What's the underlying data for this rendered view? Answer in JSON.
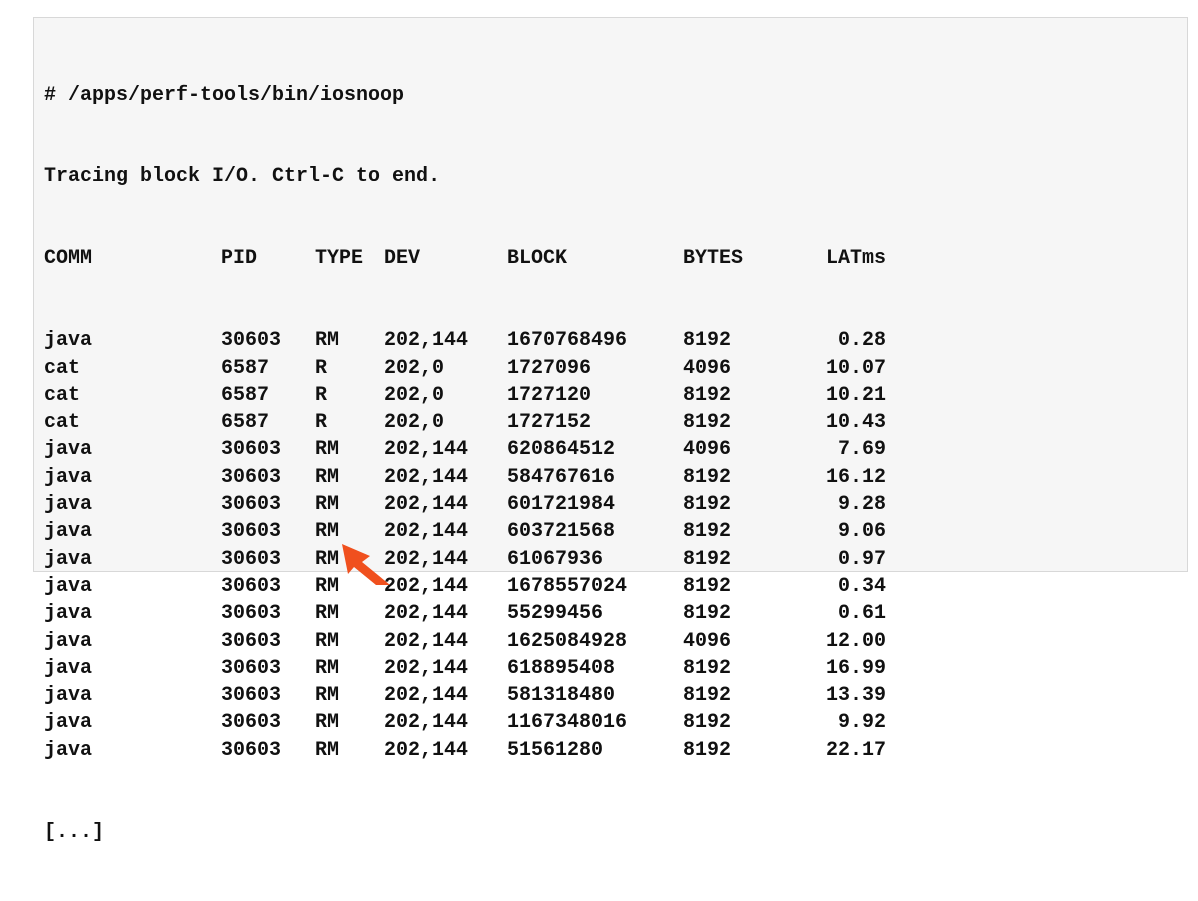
{
  "terminal": {
    "command": "# /apps/perf-tools/bin/iosnoop",
    "status_line": "Tracing block I/O. Ctrl-C to end.",
    "headers": {
      "comm": "COMM",
      "pid": "PID",
      "type": "TYPE",
      "dev": "DEV",
      "block": "BLOCK",
      "bytes": "BYTES",
      "latms": "LATms"
    },
    "rows": [
      {
        "comm": "java",
        "pid": "30603",
        "type": "RM",
        "dev": "202,144",
        "block": "1670768496",
        "bytes": "8192",
        "latms": "0.28"
      },
      {
        "comm": "cat",
        "pid": "6587",
        "type": "R",
        "dev": "202,0",
        "block": "1727096",
        "bytes": "4096",
        "latms": "10.07"
      },
      {
        "comm": "cat",
        "pid": "6587",
        "type": "R",
        "dev": "202,0",
        "block": "1727120",
        "bytes": "8192",
        "latms": "10.21"
      },
      {
        "comm": "cat",
        "pid": "6587",
        "type": "R",
        "dev": "202,0",
        "block": "1727152",
        "bytes": "8192",
        "latms": "10.43"
      },
      {
        "comm": "java",
        "pid": "30603",
        "type": "RM",
        "dev": "202,144",
        "block": "620864512",
        "bytes": "4096",
        "latms": "7.69"
      },
      {
        "comm": "java",
        "pid": "30603",
        "type": "RM",
        "dev": "202,144",
        "block": "584767616",
        "bytes": "8192",
        "latms": "16.12"
      },
      {
        "comm": "java",
        "pid": "30603",
        "type": "RM",
        "dev": "202,144",
        "block": "601721984",
        "bytes": "8192",
        "latms": "9.28"
      },
      {
        "comm": "java",
        "pid": "30603",
        "type": "RM",
        "dev": "202,144",
        "block": "603721568",
        "bytes": "8192",
        "latms": "9.06"
      },
      {
        "comm": "java",
        "pid": "30603",
        "type": "RM",
        "dev": "202,144",
        "block": "61067936",
        "bytes": "8192",
        "latms": "0.97"
      },
      {
        "comm": "java",
        "pid": "30603",
        "type": "RM",
        "dev": "202,144",
        "block": "1678557024",
        "bytes": "8192",
        "latms": "0.34"
      },
      {
        "comm": "java",
        "pid": "30603",
        "type": "RM",
        "dev": "202,144",
        "block": "55299456",
        "bytes": "8192",
        "latms": "0.61"
      },
      {
        "comm": "java",
        "pid": "30603",
        "type": "RM",
        "dev": "202,144",
        "block": "1625084928",
        "bytes": "4096",
        "latms": "12.00"
      },
      {
        "comm": "java",
        "pid": "30603",
        "type": "RM",
        "dev": "202,144",
        "block": "618895408",
        "bytes": "8192",
        "latms": "16.99"
      },
      {
        "comm": "java",
        "pid": "30603",
        "type": "RM",
        "dev": "202,144",
        "block": "581318480",
        "bytes": "8192",
        "latms": "13.39"
      },
      {
        "comm": "java",
        "pid": "30603",
        "type": "RM",
        "dev": "202,144",
        "block": "1167348016",
        "bytes": "8192",
        "latms": "9.92"
      },
      {
        "comm": "java",
        "pid": "30603",
        "type": "RM",
        "dev": "202,144",
        "block": "51561280",
        "bytes": "8192",
        "latms": "22.17"
      }
    ],
    "truncation": "[...]"
  },
  "annotation": {
    "icon": "arrow-icon",
    "color": "#f0501e"
  },
  "colors": {
    "panel_background": "#f6f6f6",
    "text": "#111111"
  }
}
